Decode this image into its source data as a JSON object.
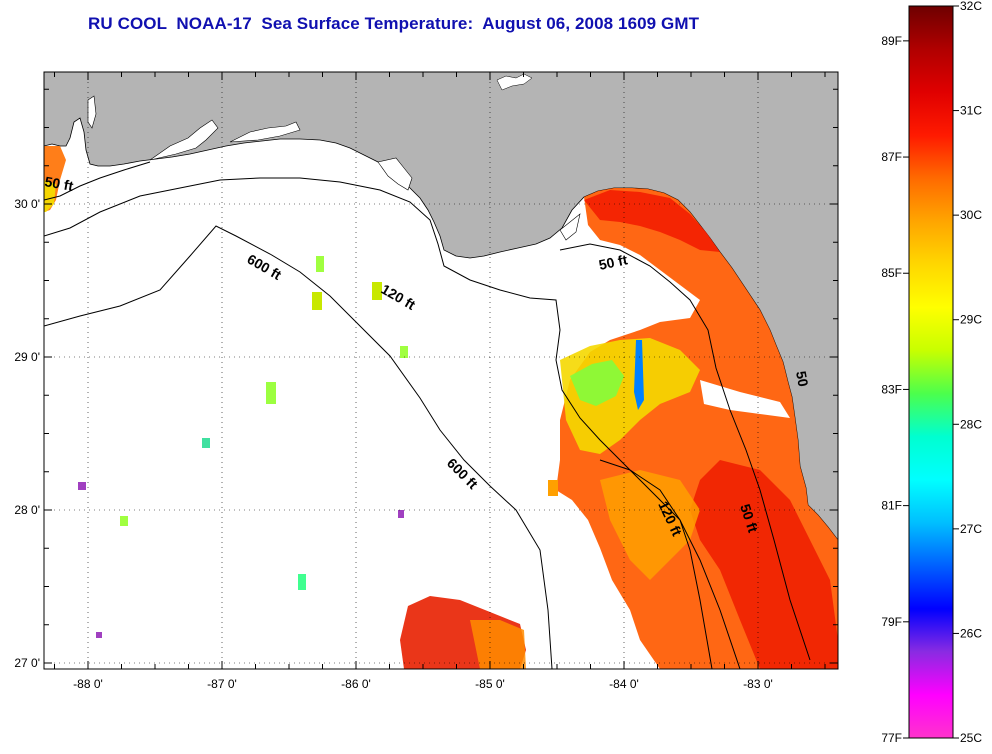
{
  "title": "RU COOL  NOAA-17  Sea Surface Temperature:  August 06, 2008 1609 GMT",
  "map": {
    "lon_ticks": [
      {
        "value": -88,
        "label": "-88 0'"
      },
      {
        "value": -87,
        "label": "-87 0'"
      },
      {
        "value": -86,
        "label": "-86 0'"
      },
      {
        "value": -85,
        "label": "-85 0'"
      },
      {
        "value": -84,
        "label": "-84 0'"
      },
      {
        "value": -83,
        "label": "-83 0'"
      }
    ],
    "lat_ticks": [
      {
        "value": 30,
        "label": "30 0'"
      },
      {
        "value": 29,
        "label": "29 0'"
      },
      {
        "value": 28,
        "label": "28 0'"
      },
      {
        "value": 27,
        "label": "27 0'"
      }
    ],
    "contour_labels": {
      "c50_west": "50 ft",
      "c600_north": "600 ft",
      "c120": "120 ft",
      "c50_east": "50 ft",
      "c600_south": "600 ft",
      "c120_south": "120 ft",
      "c50_south": "50 ft",
      "c50_edge": "50"
    },
    "colors": {
      "land": "#b4b4b4",
      "water": "#ffffff",
      "contour": "#000000"
    }
  },
  "colorbar": {
    "celsius_labels": [
      "32C",
      "31C",
      "30C",
      "29C",
      "28C",
      "27C",
      "26C",
      "25C"
    ],
    "fahrenheit_labels": [
      "89F",
      "87F",
      "85F",
      "83F",
      "81F",
      "79F",
      "77F"
    ],
    "gradient_colors": [
      "#6e0000",
      "#b00000",
      "#e00000",
      "#ff1a00",
      "#ff6a00",
      "#ffa500",
      "#ffd700",
      "#ffff00",
      "#c8ff00",
      "#4cff4c",
      "#00ffd0",
      "#00ffff",
      "#00bfff",
      "#0060ff",
      "#0000ff",
      "#8a2be2",
      "#ff00ff",
      "#ff33cc"
    ]
  }
}
